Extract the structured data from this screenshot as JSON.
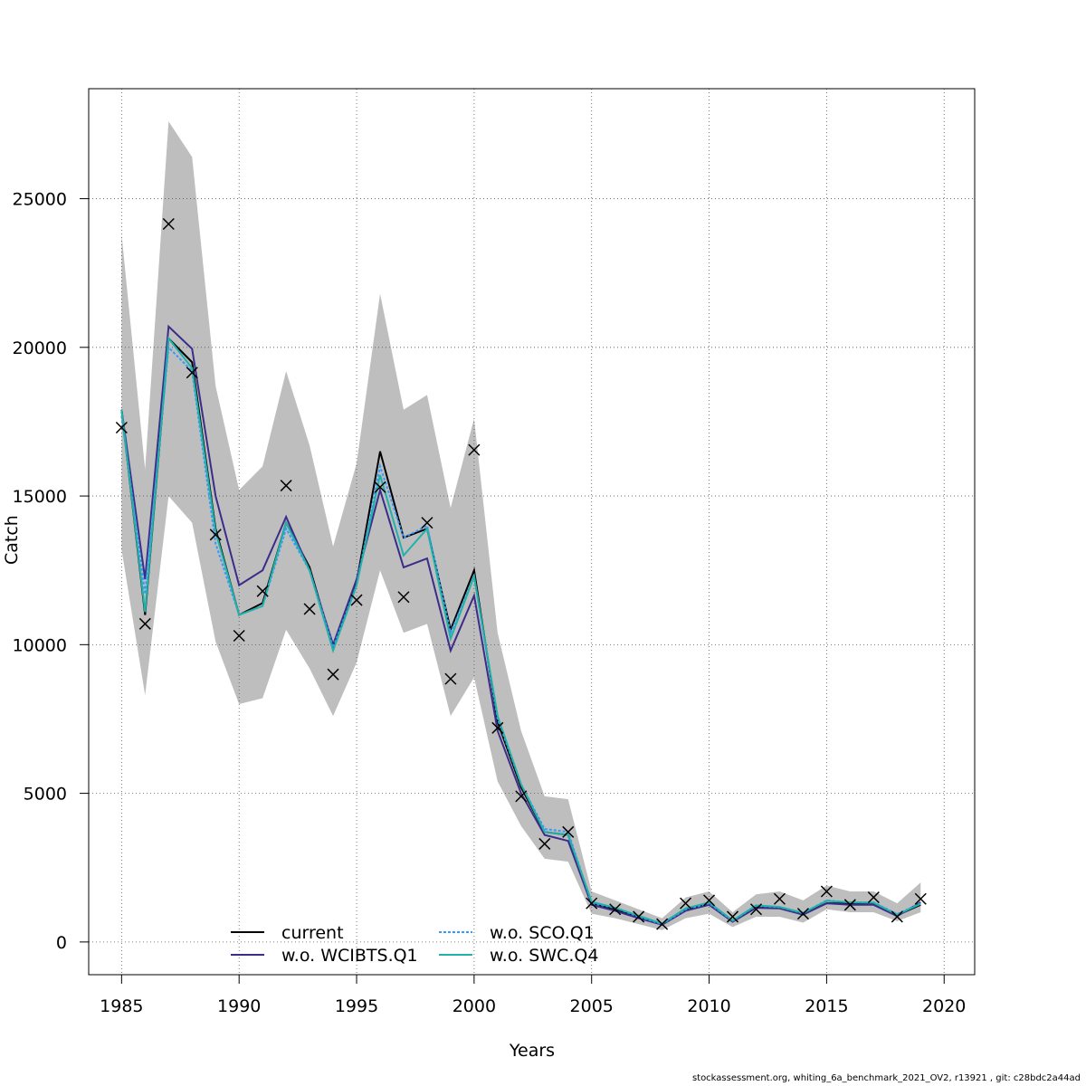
{
  "chart_data": {
    "type": "line",
    "xlabel": "Years",
    "ylabel": "Catch",
    "xlim": [
      1983.6,
      2021.3
    ],
    "ylim": [
      -1100,
      28700
    ],
    "grid": true,
    "legend_position": "bottom-center",
    "xticks": [
      1985,
      1990,
      1995,
      2000,
      2005,
      2010,
      2015,
      2020
    ],
    "yticks": [
      0,
      5000,
      10000,
      15000,
      20000,
      25000
    ],
    "x": [
      1985,
      1986,
      1987,
      1988,
      1989,
      1990,
      1991,
      1992,
      1993,
      1994,
      1995,
      1996,
      1997,
      1998,
      1999,
      2000,
      2001,
      2002,
      2003,
      2004,
      2005,
      2006,
      2007,
      2008,
      2009,
      2010,
      2011,
      2012,
      2013,
      2014,
      2015,
      2016,
      2017,
      2018,
      2019
    ],
    "confidence_band": {
      "color": "#bebebe",
      "upper": [
        23800,
        15900,
        27600,
        26400,
        18700,
        15200,
        16000,
        19200,
        16700,
        13300,
        16100,
        21800,
        17900,
        18400,
        14600,
        17600,
        10400,
        7100,
        4900,
        4800,
        1700,
        1400,
        1100,
        800,
        1500,
        1700,
        1000,
        1600,
        1700,
        1400,
        1900,
        1700,
        1700,
        1300,
        2000
      ],
      "lower": [
        13200,
        8300,
        15000,
        14100,
        10100,
        8000,
        8200,
        10500,
        9200,
        7600,
        9400,
        12500,
        10400,
        10700,
        7600,
        8900,
        5400,
        3900,
        2800,
        2700,
        950,
        800,
        600,
        400,
        800,
        950,
        500,
        850,
        850,
        650,
        1100,
        1000,
        1000,
        700,
        1000
      ]
    },
    "series": [
      {
        "name": "current",
        "color": "#000000",
        "dash": "",
        "values": [
          17900,
          11000,
          20300,
          19500,
          13900,
          11000,
          11400,
          14100,
          12600,
          9900,
          12100,
          16500,
          13600,
          13900,
          10500,
          12500,
          7400,
          5200,
          3700,
          3600,
          1300,
          1100,
          850,
          600,
          1100,
          1300,
          700,
          1200,
          1150,
          950,
          1300,
          1300,
          1300,
          900,
          1250
        ]
      },
      {
        "name": "w.o. WCIBTS.Q1",
        "color": "#3b2c8a",
        "dash": "",
        "values": [
          17900,
          12200,
          20700,
          19950,
          15000,
          12000,
          12500,
          14300,
          12500,
          10000,
          12200,
          15200,
          12600,
          12900,
          9800,
          11650,
          7100,
          5000,
          3600,
          3400,
          1250,
          1050,
          800,
          580,
          1050,
          1250,
          680,
          1150,
          1130,
          920,
          1300,
          1250,
          1250,
          870,
          1330
        ]
      },
      {
        "name": "w.o. SCO.Q1",
        "color": "#3399ff",
        "dash": "3,2",
        "values": [
          17700,
          11700,
          20000,
          19200,
          13400,
          11000,
          11300,
          13900,
          12500,
          9900,
          12000,
          16000,
          13600,
          14000,
          10400,
          12300,
          7500,
          5300,
          3800,
          3700,
          1300,
          1150,
          850,
          600,
          1100,
          1300,
          710,
          1220,
          1170,
          970,
          1400,
          1330,
          1330,
          940,
          1300
        ]
      },
      {
        "name": "w.o. SWC.Q4",
        "color": "#20b2aa",
        "dash": "",
        "values": [
          17900,
          11100,
          20300,
          19300,
          13800,
          11000,
          11300,
          14100,
          12500,
          9800,
          12000,
          15700,
          13000,
          13900,
          10200,
          12300,
          7600,
          5300,
          3700,
          3600,
          1350,
          1150,
          880,
          620,
          1130,
          1330,
          720,
          1230,
          1180,
          980,
          1380,
          1330,
          1320,
          920,
          1280
        ]
      }
    ],
    "observations": {
      "marker": "x",
      "values": [
        17300,
        10700,
        24150,
        19150,
        13700,
        10300,
        11800,
        15350,
        11200,
        9000,
        11500,
        15300,
        11600,
        14100,
        8850,
        16550,
        7200,
        4900,
        3300,
        3700,
        1300,
        1100,
        850,
        600,
        1300,
        1400,
        850,
        1100,
        1450,
        950,
        1700,
        1250,
        1500,
        850,
        1450
      ]
    }
  },
  "footer": "stockassessment.org, whiting_6a_benchmark_2021_OV2, r13921 , git: c28bdc2a44ad"
}
